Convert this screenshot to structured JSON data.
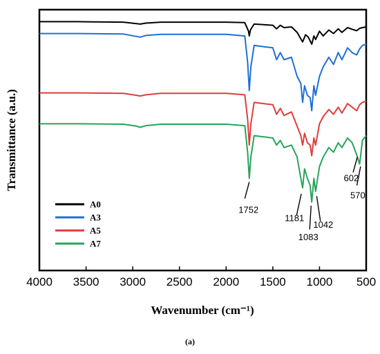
{
  "chart_data": {
    "type": "line",
    "xlabel": "Wavenumber (cm⁻¹)",
    "ylabel": "Transmittance (a.u.)",
    "xlim": [
      4000,
      500
    ],
    "x_reversed": true,
    "xticks": [
      4000,
      3500,
      3000,
      2500,
      2000,
      1500,
      1000,
      500
    ],
    "yticks_shown": false,
    "grid": false,
    "legend_position": "bottom-left",
    "caption": "(a)",
    "series": [
      {
        "name": "A0",
        "color": "#000000",
        "baseline": 0.99,
        "points": [
          [
            4000,
            0.99
          ],
          [
            3600,
            0.99
          ],
          [
            3100,
            0.988
          ],
          [
            2960,
            0.982
          ],
          [
            2920,
            0.98
          ],
          [
            2860,
            0.984
          ],
          [
            2700,
            0.988
          ],
          [
            2000,
            0.988
          ],
          [
            1800,
            0.986
          ],
          [
            1760,
            0.95
          ],
          [
            1752,
            0.93
          ],
          [
            1740,
            0.955
          ],
          [
            1700,
            0.98
          ],
          [
            1500,
            0.975
          ],
          [
            1460,
            0.96
          ],
          [
            1420,
            0.975
          ],
          [
            1380,
            0.965
          ],
          [
            1300,
            0.968
          ],
          [
            1240,
            0.945
          ],
          [
            1181,
            0.905
          ],
          [
            1150,
            0.935
          ],
          [
            1120,
            0.925
          ],
          [
            1083,
            0.895
          ],
          [
            1060,
            0.93
          ],
          [
            1042,
            0.915
          ],
          [
            1000,
            0.95
          ],
          [
            960,
            0.93
          ],
          [
            900,
            0.955
          ],
          [
            850,
            0.94
          ],
          [
            800,
            0.96
          ],
          [
            760,
            0.945
          ],
          [
            700,
            0.965
          ],
          [
            650,
            0.958
          ],
          [
            602,
            0.952
          ],
          [
            570,
            0.962
          ],
          [
            540,
            0.965
          ],
          [
            500,
            0.968
          ]
        ]
      },
      {
        "name": "A3",
        "color": "#1f6fd6",
        "baseline": 0.94,
        "points": [
          [
            4000,
            0.94
          ],
          [
            3600,
            0.94
          ],
          [
            3100,
            0.938
          ],
          [
            2960,
            0.928
          ],
          [
            2920,
            0.925
          ],
          [
            2860,
            0.932
          ],
          [
            2700,
            0.937
          ],
          [
            2000,
            0.937
          ],
          [
            1800,
            0.93
          ],
          [
            1770,
            0.82
          ],
          [
            1752,
            0.7
          ],
          [
            1735,
            0.8
          ],
          [
            1700,
            0.89
          ],
          [
            1600,
            0.885
          ],
          [
            1500,
            0.88
          ],
          [
            1460,
            0.83
          ],
          [
            1420,
            0.86
          ],
          [
            1380,
            0.83
          ],
          [
            1300,
            0.84
          ],
          [
            1240,
            0.76
          ],
          [
            1200,
            0.73
          ],
          [
            1181,
            0.65
          ],
          [
            1160,
            0.72
          ],
          [
            1130,
            0.68
          ],
          [
            1100,
            0.67
          ],
          [
            1083,
            0.615
          ],
          [
            1060,
            0.72
          ],
          [
            1042,
            0.68
          ],
          [
            1000,
            0.76
          ],
          [
            960,
            0.8
          ],
          [
            900,
            0.84
          ],
          [
            850,
            0.81
          ],
          [
            800,
            0.86
          ],
          [
            760,
            0.83
          ],
          [
            700,
            0.88
          ],
          [
            650,
            0.86
          ],
          [
            602,
            0.85
          ],
          [
            570,
            0.875
          ],
          [
            540,
            0.89
          ],
          [
            500,
            0.895
          ]
        ]
      },
      {
        "name": "A5",
        "color": "#e03c3c",
        "baseline": 0.69,
        "points": [
          [
            4000,
            0.69
          ],
          [
            3600,
            0.69
          ],
          [
            3100,
            0.688
          ],
          [
            2960,
            0.68
          ],
          [
            2920,
            0.677
          ],
          [
            2860,
            0.682
          ],
          [
            2700,
            0.688
          ],
          [
            2000,
            0.688
          ],
          [
            1800,
            0.682
          ],
          [
            1770,
            0.58
          ],
          [
            1752,
            0.47
          ],
          [
            1735,
            0.56
          ],
          [
            1700,
            0.65
          ],
          [
            1600,
            0.645
          ],
          [
            1500,
            0.64
          ],
          [
            1460,
            0.6
          ],
          [
            1420,
            0.625
          ],
          [
            1380,
            0.595
          ],
          [
            1300,
            0.61
          ],
          [
            1240,
            0.55
          ],
          [
            1200,
            0.51
          ],
          [
            1181,
            0.47
          ],
          [
            1160,
            0.52
          ],
          [
            1130,
            0.48
          ],
          [
            1100,
            0.47
          ],
          [
            1083,
            0.425
          ],
          [
            1060,
            0.5
          ],
          [
            1042,
            0.47
          ],
          [
            1000,
            0.56
          ],
          [
            960,
            0.59
          ],
          [
            900,
            0.62
          ],
          [
            850,
            0.6
          ],
          [
            800,
            0.63
          ],
          [
            760,
            0.605
          ],
          [
            700,
            0.645
          ],
          [
            650,
            0.63
          ],
          [
            602,
            0.615
          ],
          [
            570,
            0.64
          ],
          [
            540,
            0.65
          ],
          [
            500,
            0.655
          ]
        ]
      },
      {
        "name": "A7",
        "color": "#28a35a",
        "baseline": 0.56,
        "points": [
          [
            4000,
            0.56
          ],
          [
            3600,
            0.56
          ],
          [
            3100,
            0.558
          ],
          [
            2960,
            0.55
          ],
          [
            2920,
            0.545
          ],
          [
            2860,
            0.552
          ],
          [
            2700,
            0.558
          ],
          [
            2000,
            0.558
          ],
          [
            1800,
            0.552
          ],
          [
            1770,
            0.44
          ],
          [
            1752,
            0.33
          ],
          [
            1735,
            0.42
          ],
          [
            1700,
            0.51
          ],
          [
            1600,
            0.505
          ],
          [
            1500,
            0.5
          ],
          [
            1460,
            0.47
          ],
          [
            1420,
            0.49
          ],
          [
            1380,
            0.46
          ],
          [
            1300,
            0.47
          ],
          [
            1240,
            0.42
          ],
          [
            1200,
            0.33
          ],
          [
            1181,
            0.29
          ],
          [
            1160,
            0.37
          ],
          [
            1130,
            0.33
          ],
          [
            1100,
            0.3
          ],
          [
            1083,
            0.23
          ],
          [
            1060,
            0.33
          ],
          [
            1042,
            0.275
          ],
          [
            1000,
            0.38
          ],
          [
            960,
            0.42
          ],
          [
            900,
            0.46
          ],
          [
            850,
            0.44
          ],
          [
            800,
            0.48
          ],
          [
            760,
            0.46
          ],
          [
            700,
            0.5
          ],
          [
            650,
            0.48
          ],
          [
            602,
            0.43
          ],
          [
            570,
            0.39
          ],
          [
            540,
            0.49
          ],
          [
            500,
            0.51
          ]
        ]
      }
    ],
    "annotations": [
      {
        "label": "1752",
        "x": 1752
      },
      {
        "label": "1181",
        "x": 1181
      },
      {
        "label": "1083",
        "x": 1083
      },
      {
        "label": "1042",
        "x": 1042
      },
      {
        "label": "602",
        "x": 602
      },
      {
        "label": "570",
        "x": 570
      }
    ]
  }
}
